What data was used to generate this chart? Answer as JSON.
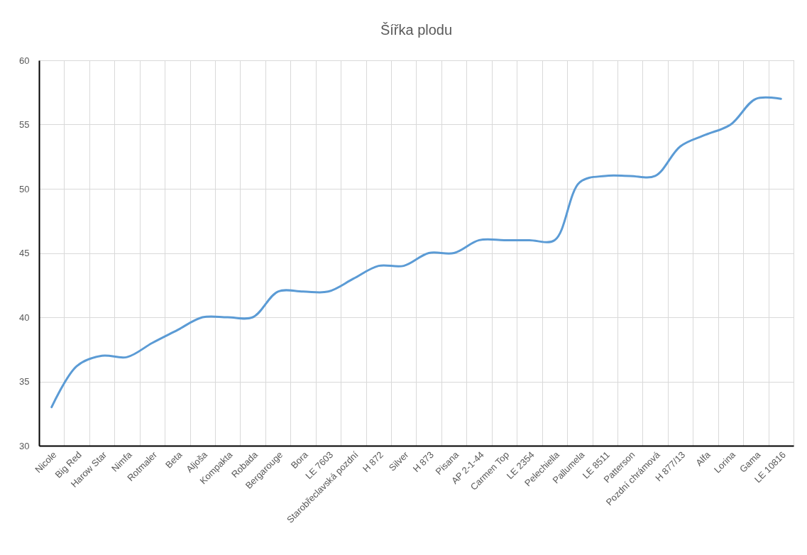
{
  "chart_data": {
    "type": "line",
    "title": "Šířka plodu",
    "categories": [
      "Nicole",
      "Big Red",
      "Harow Star",
      "Nimfa",
      "Rotmaler",
      "Beta",
      "Aljoša",
      "Kompakta",
      "Robada",
      "Bergarouge",
      "Bora",
      "LE 7603",
      "Starobřeclavská pozdní",
      "H 872",
      "Silver",
      "H 873",
      "Pisana",
      "AP 2-1-44",
      "Carmen Top",
      "LE 2354",
      "Pelechiella",
      "Pallumela",
      "LE 8511",
      "Patterson",
      "Pozdní chrámová",
      "H 877/13",
      "Alfa",
      "Lorina",
      "Gama",
      "LE 10816"
    ],
    "series": [
      {
        "color": "#5b9bd5",
        "values": [
          33,
          36.2,
          37,
          36.9,
          38,
          39,
          40,
          40,
          40,
          42,
          42,
          42,
          43,
          44,
          44,
          45,
          45,
          46,
          46,
          46,
          46,
          50.5,
          51,
          51,
          51,
          53.3,
          54.2,
          55,
          57,
          57
        ]
      }
    ],
    "ylim": [
      30,
      60
    ],
    "yticks": [
      30,
      35,
      40,
      45,
      50,
      55,
      60
    ],
    "grid": true,
    "line_style": "solid"
  }
}
